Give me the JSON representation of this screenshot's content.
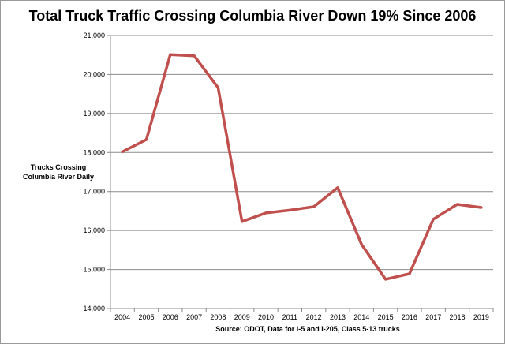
{
  "chart_data": {
    "type": "line",
    "title": "Total Truck Traffic Crossing Columbia River Down 19% Since 2006",
    "ylabel": "Trucks Crossing\nColumbia River Daily",
    "source": "Source:  ODOT, Data for I-5 and I-205, Class 5-13 trucks",
    "x": [
      "2004",
      "2005",
      "2006",
      "2007",
      "2008",
      "2009",
      "2010",
      "2011",
      "2012",
      "2013",
      "2014",
      "2015",
      "2016",
      "2017",
      "2018",
      "2019"
    ],
    "series": [
      {
        "values": [
          18020,
          18330,
          20510,
          20480,
          19660,
          16230,
          16450,
          16520,
          16610,
          17100,
          15640,
          14750,
          14890,
          16290,
          16670,
          16590
        ],
        "color": "#c0504d"
      }
    ],
    "ylim": [
      14000,
      21000
    ],
    "yticks": [
      14000,
      15000,
      16000,
      17000,
      18000,
      19000,
      20000,
      21000
    ],
    "ytick_labels": [
      "14,000",
      "15,000",
      "16,000",
      "17,000",
      "18,000",
      "19,000",
      "20,000",
      "21,000"
    ],
    "grid": true,
    "legend": "none"
  }
}
